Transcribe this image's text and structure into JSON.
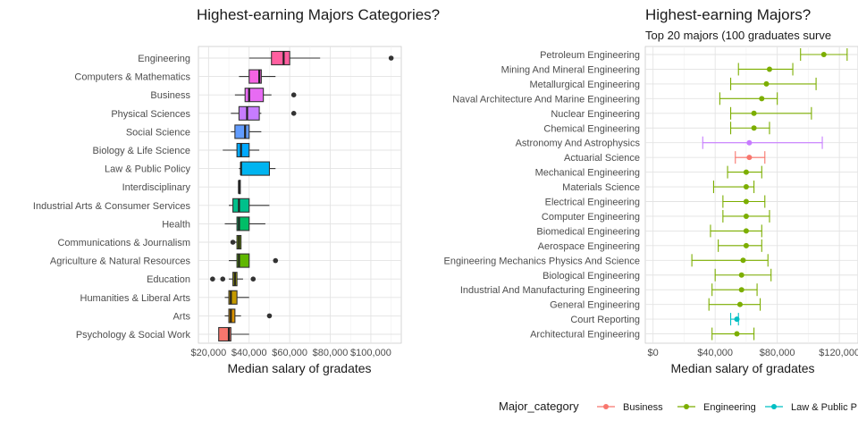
{
  "chart_data": [
    {
      "type": "boxplot",
      "title": "Highest-earning Majors Categories?",
      "xlabel": "Median salary of gradates",
      "ylabel": "",
      "xlim": [
        15000,
        115000
      ],
      "x_ticks": [
        {
          "value": 20000,
          "label": "$20,000"
        },
        {
          "value": 40000,
          "label": "$40,000"
        },
        {
          "value": 60000,
          "label": "$60,000"
        },
        {
          "value": 80000,
          "label": "$80,000"
        },
        {
          "value": 100000,
          "label": "$100,000"
        }
      ],
      "grid": true,
      "legend": "none",
      "boxes": [
        {
          "category": "Engineering",
          "color": "#FF5FA0",
          "min": 40000,
          "q1": 51000,
          "median": 57000,
          "q3": 60000,
          "max": 75000,
          "outliers": [
            110000
          ]
        },
        {
          "category": "Computers & Mathematics",
          "color": "#F564E3",
          "min": 35000,
          "q1": 40000,
          "median": 45000,
          "q3": 46000,
          "max": 53000,
          "outliers": []
        },
        {
          "category": "Business",
          "color": "#E76BF3",
          "min": 33000,
          "q1": 38000,
          "median": 40000,
          "q3": 47000,
          "max": 51000,
          "outliers": [
            62000
          ]
        },
        {
          "category": "Physical Sciences",
          "color": "#C77CFF",
          "min": 31000,
          "q1": 35000,
          "median": 39000,
          "q3": 45000,
          "max": 46000,
          "outliers": [
            62000
          ]
        },
        {
          "category": "Social Science",
          "color": "#619CFF",
          "min": 31000,
          "q1": 33000,
          "median": 38000,
          "q3": 40000,
          "max": 46000,
          "outliers": []
        },
        {
          "category": "Biology & Life Science",
          "color": "#00A9FF",
          "min": 27000,
          "q1": 34000,
          "median": 36000,
          "q3": 40000,
          "max": 45000,
          "outliers": []
        },
        {
          "category": "Law & Public Policy",
          "color": "#00B4F0",
          "min": 35000,
          "q1": 36000,
          "median": 36000,
          "q3": 50000,
          "max": 53000,
          "outliers": []
        },
        {
          "category": "Interdisciplinary",
          "color": "#00BFC4",
          "min": 35000,
          "q1": 35000,
          "median": 35000,
          "q3": 35000,
          "max": 35000,
          "outliers": []
        },
        {
          "category": "Industrial Arts & Consumer Services",
          "color": "#00C08B",
          "min": 30000,
          "q1": 32000,
          "median": 35000,
          "q3": 40000,
          "max": 50000,
          "outliers": []
        },
        {
          "category": "Health",
          "color": "#00BE67",
          "min": 28000,
          "q1": 34000,
          "median": 35000,
          "q3": 40000,
          "max": 48000,
          "outliers": []
        },
        {
          "category": "Communications & Journalism",
          "color": "#7CAE00",
          "min": 32000,
          "q1": 34000,
          "median": 35000,
          "q3": 36000,
          "max": 36000,
          "outliers": [
            32000
          ]
        },
        {
          "category": "Agriculture & Natural Resources",
          "color": "#5FB700",
          "min": 30000,
          "q1": 34000,
          "median": 35000,
          "q3": 40000,
          "max": 40000,
          "outliers": [
            53000
          ]
        },
        {
          "category": "Education",
          "color": "#A3A500",
          "min": 30000,
          "q1": 32000,
          "median": 33000,
          "q3": 34000,
          "max": 37000,
          "outliers": [
            22000,
            27000,
            42000
          ]
        },
        {
          "category": "Humanities & Liberal Arts",
          "color": "#C49A00",
          "min": 28000,
          "q1": 30000,
          "median": 31000,
          "q3": 34000,
          "max": 40000,
          "outliers": []
        },
        {
          "category": "Arts",
          "color": "#D89000",
          "min": 28000,
          "q1": 30000,
          "median": 31000,
          "q3": 33000,
          "max": 36000,
          "outliers": [
            50000
          ]
        },
        {
          "category": "Psychology & Social Work",
          "color": "#F8766D",
          "min": 25000,
          "q1": 25000,
          "median": 30000,
          "q3": 31000,
          "max": 40000,
          "outliers": []
        }
      ]
    },
    {
      "type": "errorbar",
      "title": "Highest-earning Majors?",
      "subtitle": "Top 20 majors (100 graduates surve",
      "xlabel": "Median salary of gradates",
      "ylabel": "",
      "xlim": [
        -5000,
        132000
      ],
      "x_ticks": [
        {
          "value": 0,
          "label": "$0"
        },
        {
          "value": 40000,
          "label": "$40,000"
        },
        {
          "value": 80000,
          "label": "$80,000"
        },
        {
          "value": 120000,
          "label": "$120,000"
        }
      ],
      "grid": true,
      "legend": "bottom",
      "legend_title": "Major_category",
      "legend_items": [
        {
          "label": "Business",
          "color": "#F8766D"
        },
        {
          "label": "Engineering",
          "color": "#7CAE00"
        },
        {
          "label": "Law & Public P",
          "color": "#00BFC4"
        }
      ],
      "category_colors": {
        "Business": "#F8766D",
        "Engineering": "#7CAE00",
        "Law & Public Policy": "#00BFC4",
        "Physical Sciences": "#C77CFF"
      },
      "series": [
        {
          "name": "Petroleum Engineering",
          "category": "Engineering",
          "median": 110000,
          "low": 95000,
          "high": 125000
        },
        {
          "name": "Mining And Mineral Engineering",
          "category": "Engineering",
          "median": 75000,
          "low": 55000,
          "high": 90000
        },
        {
          "name": "Metallurgical Engineering",
          "category": "Engineering",
          "median": 73000,
          "low": 50000,
          "high": 105000
        },
        {
          "name": "Naval Architecture And Marine Engineering",
          "category": "Engineering",
          "median": 70000,
          "low": 43000,
          "high": 80000
        },
        {
          "name": "Nuclear Engineering",
          "category": "Engineering",
          "median": 65000,
          "low": 50000,
          "high": 102000
        },
        {
          "name": "Chemical Engineering",
          "category": "Engineering",
          "median": 65000,
          "low": 50000,
          "high": 75000
        },
        {
          "name": "Astronomy And Astrophysics",
          "category": "Physical Sciences",
          "median": 62000,
          "low": 32000,
          "high": 109000
        },
        {
          "name": "Actuarial Science",
          "category": "Business",
          "median": 62000,
          "low": 53000,
          "high": 72000
        },
        {
          "name": "Mechanical Engineering",
          "category": "Engineering",
          "median": 60000,
          "low": 48000,
          "high": 70000
        },
        {
          "name": "Materials Science",
          "category": "Engineering",
          "median": 60000,
          "low": 39000,
          "high": 65000
        },
        {
          "name": "Electrical Engineering",
          "category": "Engineering",
          "median": 60000,
          "low": 45000,
          "high": 72000
        },
        {
          "name": "Computer Engineering",
          "category": "Engineering",
          "median": 60000,
          "low": 45000,
          "high": 75000
        },
        {
          "name": "Biomedical Engineering",
          "category": "Engineering",
          "median": 60000,
          "low": 37000,
          "high": 70000
        },
        {
          "name": "Aerospace Engineering",
          "category": "Engineering",
          "median": 60000,
          "low": 42000,
          "high": 70000
        },
        {
          "name": "Engineering Mechanics Physics And Science",
          "category": "Engineering",
          "median": 58000,
          "low": 25000,
          "high": 74000
        },
        {
          "name": "Biological Engineering",
          "category": "Engineering",
          "median": 57000,
          "low": 40000,
          "high": 76000
        },
        {
          "name": "Industrial And Manufacturing Engineering",
          "category": "Engineering",
          "median": 57000,
          "low": 38000,
          "high": 67000
        },
        {
          "name": "General Engineering",
          "category": "Engineering",
          "median": 56000,
          "low": 36000,
          "high": 69000
        },
        {
          "name": "Court Reporting",
          "category": "Law & Public Policy",
          "median": 54000,
          "low": 50000,
          "high": 55000
        },
        {
          "name": "Architectural Engineering",
          "category": "Engineering",
          "median": 54000,
          "low": 38000,
          "high": 65000
        }
      ]
    }
  ]
}
